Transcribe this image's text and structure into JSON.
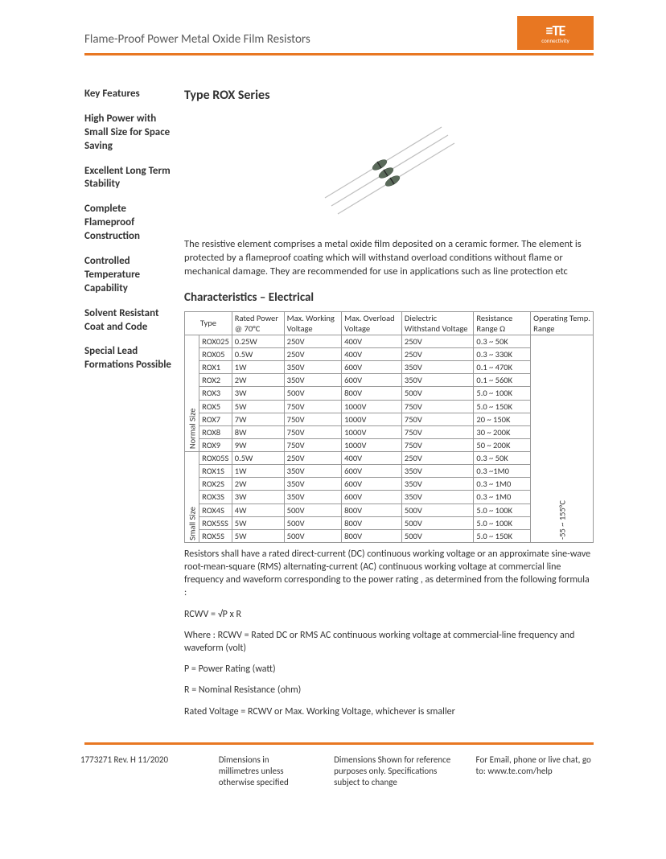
{
  "header": {
    "doc_title": "Flame-Proof Power Metal Oxide Film Resistors",
    "logo_main": "≡TE",
    "logo_sub": "connectivity",
    "logo_bg": "#e87722"
  },
  "sidebar": {
    "features": [
      "Key Features",
      "High Power with Small Size for Space Saving",
      "Excellent Long Term Stability",
      "Complete Flameproof Construction",
      "Controlled Temperature Capability",
      "Solvent Resistant Coat and Code",
      "Special Lead Formations Possible"
    ]
  },
  "main": {
    "title": "Type ROX Series",
    "description": "The resistive element comprises a metal oxide film deposited on a ceramic former. The element is protected by a flameproof coating which will withstand overload conditions without flame or mechanical damage. They are recommended for use in applications such as line protection etc",
    "char_heading": "Characteristics – Electrical"
  },
  "table": {
    "headers": {
      "type": "Type",
      "power": "Rated Power @ 70°C",
      "working": "Max. Working Voltage",
      "overload": "Max. Overload Voltage",
      "dielectric": "Dielectric Withstand Voltage",
      "resistance": "Resistance Range Ω",
      "temp": "Operating Temp. Range"
    },
    "group_normal": "Normal Size",
    "group_small": "Small Size",
    "temp_range": "-55 ~ 155°C",
    "normal_rows": [
      [
        "ROX025",
        "0.25W",
        "250V",
        "400V",
        "250V",
        "0.3 ~ 50K"
      ],
      [
        "ROX05",
        "0.5W",
        "250V",
        "400V",
        "250V",
        "0.3 ~ 330K"
      ],
      [
        "ROX1",
        "1W",
        "350V",
        "600V",
        "350V",
        "0.1 ~ 470K"
      ],
      [
        "ROX2",
        "2W",
        "350V",
        "600V",
        "350V",
        "0.1 ~ 560K"
      ],
      [
        "ROX3",
        "3W",
        "500V",
        "800V",
        "500V",
        "5.0 ~ 100K"
      ],
      [
        "ROX5",
        "5W",
        "750V",
        "1000V",
        "750V",
        "5.0 ~ 150K"
      ],
      [
        "ROX7",
        "7W",
        "750V",
        "1000V",
        "750V",
        "20 ~ 150K"
      ],
      [
        "ROX8",
        "8W",
        "750V",
        "1000V",
        "750V",
        "30 ~ 200K"
      ],
      [
        "ROX9",
        "9W",
        "750V",
        "1000V",
        "750V",
        "50 ~ 200K"
      ]
    ],
    "small_rows": [
      [
        "ROX05S",
        "0.5W",
        "250V",
        "400V",
        "250V",
        "0.3 ~ 50K"
      ],
      [
        "ROX1S",
        "1W",
        "350V",
        "600V",
        "350V",
        "0.3 ~1M0"
      ],
      [
        "ROX2S",
        "2W",
        "350V",
        "600V",
        "350V",
        "0.3 ~ 1M0"
      ],
      [
        "ROX3S",
        "3W",
        "350V",
        "600V",
        "350V",
        "0.3 ~ 1M0"
      ],
      [
        "ROX4S",
        "4W",
        "500V",
        "800V",
        "500V",
        "5.0 ~ 100K"
      ],
      [
        "ROX5SS",
        "5W",
        "500V",
        "800V",
        "500V",
        "5.0 ~ 100K"
      ],
      [
        "ROX5S",
        "5W",
        "500V",
        "800V",
        "500V",
        "5.0 ~ 150K"
      ]
    ]
  },
  "notes": {
    "n1": "Resistors shall have a rated direct-current (DC) continuous working voltage or an approximate sine-wave root-mean-square (RMS) alternating-current (AC) continuous working voltage at commercial line frequency and waveform corresponding to the power rating , as determined from the following formula :",
    "n2": "RCWV = √P x R",
    "n3": "Where : RCWV = Rated DC or RMS AC continuous working voltage at commercial-line frequency and waveform (volt)",
    "n4": "P = Power Rating (watt)",
    "n5": "R = Nominal Resistance (ohm)",
    "n6": "Rated Voltage = RCWV or Max. Working Voltage, whichever is smaller"
  },
  "footer": {
    "rev": "1773271 Rev. H 11/2020",
    "dims": "Dimensions in millimetres unless otherwise specified",
    "ref": "Dimensions Shown for reference purposes only. Specifications subject to change",
    "contact": "For Email, phone or live chat, go to: www.te.com/help"
  },
  "image": {
    "lead_color": "#bfbfbf",
    "body_color": "#5a6a5a",
    "band_color": "#2a2a2a"
  }
}
